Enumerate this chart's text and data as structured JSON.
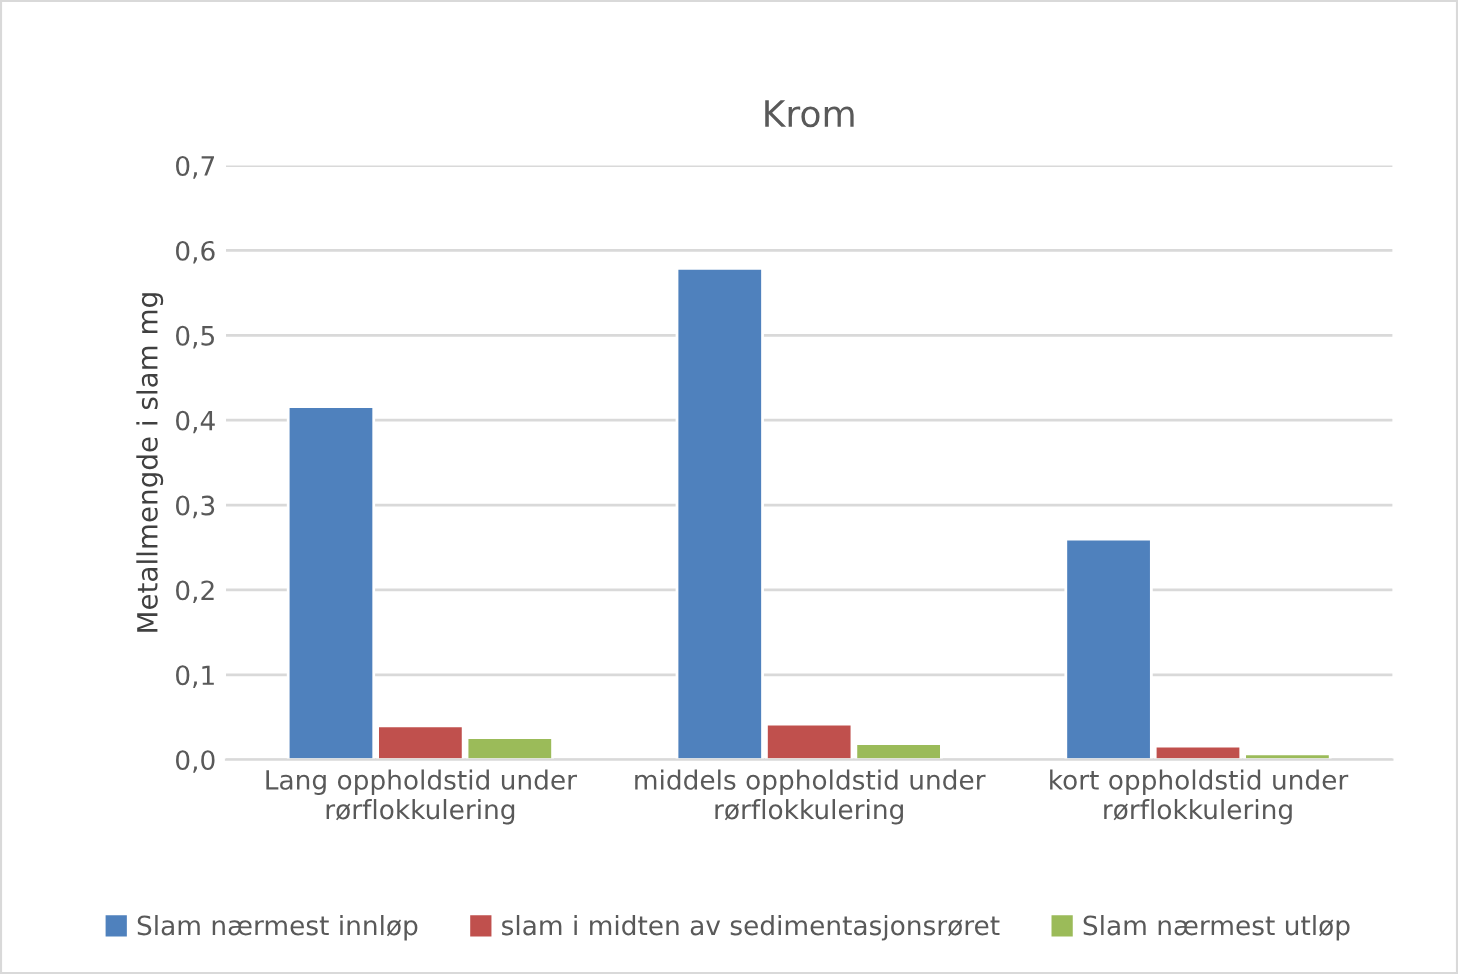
{
  "chart_data": {
    "type": "bar",
    "title": "Krom",
    "ylabel": "Metallmengde i slam mg",
    "categories": [
      "Lang oppholdstid under\nrørflokkulering",
      "middels oppholdstid under\nrørflokkulering",
      "kort oppholdstid under\nrørflokkulering"
    ],
    "series": [
      {
        "name": "Slam nærmest innløp",
        "color": "#4f81bd",
        "values": [
          0.416,
          0.579,
          0.26
        ]
      },
      {
        "name": "slam i midten av sedimentasjonsrøret",
        "color": "#c0504d",
        "values": [
          0.04,
          0.042,
          0.016
        ]
      },
      {
        "name": "Slam nærmest utløp",
        "color": "#9bbb59",
        "values": [
          0.026,
          0.019,
          0.007
        ]
      }
    ],
    "ylim": [
      0,
      0.7
    ],
    "yticks": [
      {
        "value": 0,
        "label": "0,0"
      },
      {
        "value": 0.1,
        "label": "0,1"
      },
      {
        "value": 0.2,
        "label": "0,2"
      },
      {
        "value": 0.3,
        "label": "0,3"
      },
      {
        "value": 0.4,
        "label": "0,4"
      },
      {
        "value": 0.5,
        "label": "0,5"
      },
      {
        "value": 0.6,
        "label": "0,6"
      },
      {
        "value": 0.7,
        "label": "0,7"
      }
    ],
    "grid": "y",
    "legend": "bottom"
  }
}
